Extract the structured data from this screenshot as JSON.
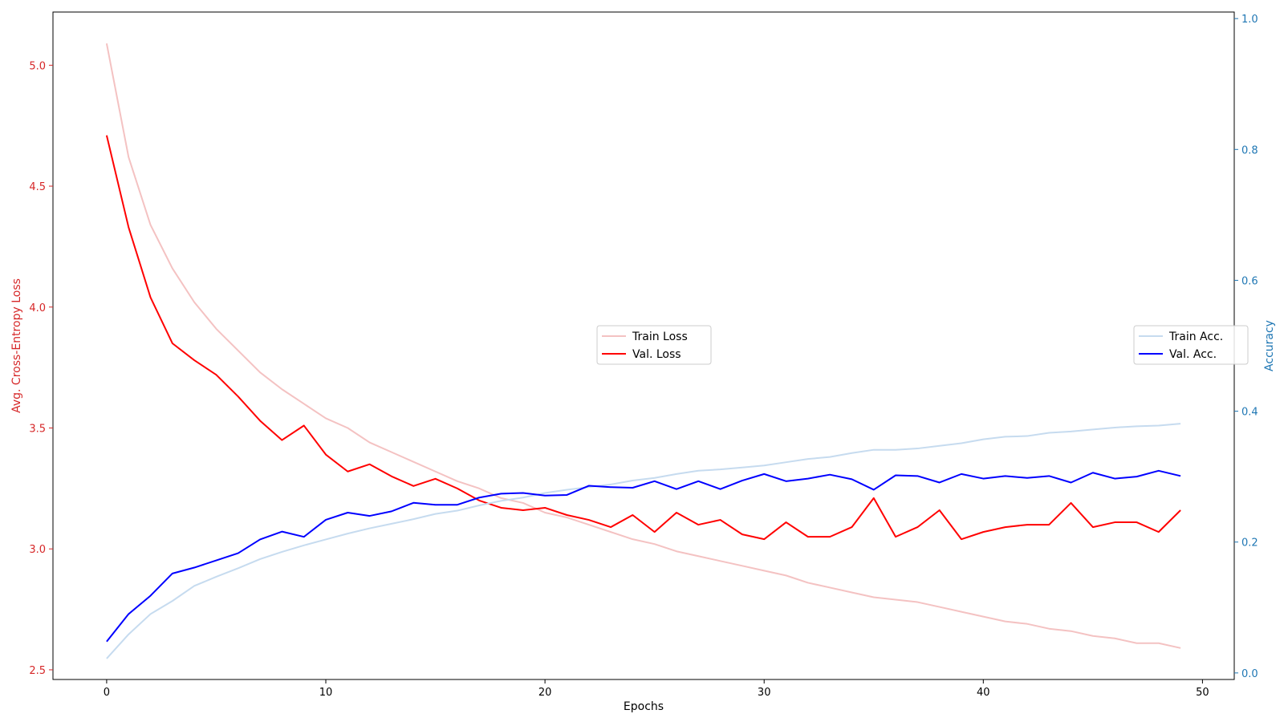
{
  "chart_data": {
    "type": "line",
    "xlabel": "Epochs",
    "ylabel_left": "Avg. Cross-Entropy Loss",
    "ylabel_right": "Accuracy",
    "xlim": [
      -2.45,
      51.45
    ],
    "ylim_left": [
      2.46,
      5.22
    ],
    "ylim_right": [
      -0.01,
      1.01
    ],
    "x_ticks": [
      0,
      10,
      20,
      30,
      40,
      50
    ],
    "y_left_ticks": [
      2.5,
      3.0,
      3.5,
      4.0,
      4.5,
      5.0
    ],
    "y_right_ticks": [
      0.0,
      0.2,
      0.4,
      0.6,
      0.8,
      1.0
    ],
    "x": [
      0,
      1,
      2,
      3,
      4,
      5,
      6,
      7,
      8,
      9,
      10,
      11,
      12,
      13,
      14,
      15,
      16,
      17,
      18,
      19,
      20,
      21,
      22,
      23,
      24,
      25,
      26,
      27,
      28,
      29,
      30,
      31,
      32,
      33,
      34,
      35,
      36,
      37,
      38,
      39,
      40,
      41,
      42,
      43,
      44,
      45,
      46,
      47,
      48,
      49
    ],
    "grid": false,
    "series": [
      {
        "name": "Train Loss",
        "axis": "left",
        "color": "#f4c2c2",
        "values": [
          5.09,
          4.62,
          4.34,
          4.16,
          4.02,
          3.91,
          3.82,
          3.73,
          3.66,
          3.6,
          3.54,
          3.5,
          3.44,
          3.4,
          3.36,
          3.32,
          3.28,
          3.25,
          3.21,
          3.19,
          3.15,
          3.13,
          3.1,
          3.07,
          3.04,
          3.02,
          2.99,
          2.97,
          2.95,
          2.93,
          2.91,
          2.89,
          2.86,
          2.84,
          2.82,
          2.8,
          2.79,
          2.78,
          2.76,
          2.74,
          2.72,
          2.7,
          2.69,
          2.67,
          2.66,
          2.64,
          2.63,
          2.61,
          2.61,
          2.59
        ]
      },
      {
        "name": "Val. Loss",
        "axis": "left",
        "color": "#ff0000",
        "values": [
          4.71,
          4.33,
          4.04,
          3.85,
          3.78,
          3.72,
          3.63,
          3.53,
          3.45,
          3.51,
          3.39,
          3.32,
          3.35,
          3.3,
          3.26,
          3.29,
          3.25,
          3.2,
          3.17,
          3.16,
          3.17,
          3.14,
          3.12,
          3.09,
          3.14,
          3.07,
          3.15,
          3.1,
          3.12,
          3.06,
          3.04,
          3.11,
          3.05,
          3.05,
          3.09,
          3.21,
          3.05,
          3.09,
          3.16,
          3.04,
          3.07,
          3.09,
          3.1,
          3.1,
          3.19,
          3.09,
          3.11,
          3.11,
          3.07,
          3.16
        ]
      },
      {
        "name": "Train Acc.",
        "axis": "right",
        "color": "#c6dbef",
        "values": [
          0.022,
          0.059,
          0.09,
          0.11,
          0.133,
          0.147,
          0.16,
          0.174,
          0.185,
          0.195,
          0.204,
          0.213,
          0.221,
          0.228,
          0.235,
          0.243,
          0.248,
          0.256,
          0.263,
          0.268,
          0.275,
          0.28,
          0.284,
          0.288,
          0.294,
          0.298,
          0.304,
          0.309,
          0.311,
          0.314,
          0.317,
          0.322,
          0.327,
          0.33,
          0.336,
          0.341,
          0.341,
          0.343,
          0.347,
          0.351,
          0.357,
          0.361,
          0.362,
          0.367,
          0.369,
          0.372,
          0.375,
          0.377,
          0.378,
          0.381
        ]
      },
      {
        "name": "Val. Acc.",
        "axis": "right",
        "color": "#0000ff",
        "values": [
          0.048,
          0.09,
          0.118,
          0.152,
          0.161,
          0.172,
          0.183,
          0.204,
          0.216,
          0.208,
          0.234,
          0.245,
          0.24,
          0.247,
          0.26,
          0.257,
          0.257,
          0.268,
          0.274,
          0.275,
          0.271,
          0.272,
          0.286,
          0.284,
          0.283,
          0.293,
          0.281,
          0.293,
          0.281,
          0.294,
          0.304,
          0.293,
          0.297,
          0.303,
          0.296,
          0.28,
          0.302,
          0.301,
          0.291,
          0.304,
          0.297,
          0.301,
          0.298,
          0.301,
          0.291,
          0.306,
          0.297,
          0.3,
          0.309,
          0.301
        ]
      }
    ]
  }
}
